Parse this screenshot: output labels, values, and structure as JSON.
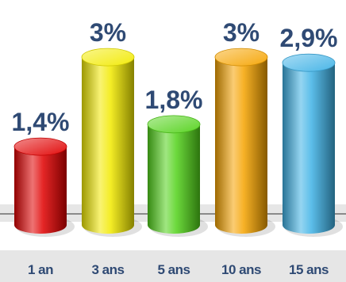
{
  "chart_data": {
    "type": "bar",
    "style": "3d-cylinder",
    "categories": [
      "1 an",
      "3 ans",
      "5 ans",
      "10 ans",
      "15 ans"
    ],
    "values": [
      1.4,
      3.0,
      1.8,
      3.0,
      2.9
    ],
    "value_labels": [
      "1,4%",
      "3%",
      "1,8%",
      "3%",
      "2,9%"
    ],
    "unit": "%",
    "ylim": [
      0,
      3.2
    ],
    "grid": false,
    "legend": "none",
    "bar_colors": [
      "#e00000",
      "#f2ea00",
      "#52d21a",
      "#f5a300",
      "#3fb2e6"
    ],
    "label_color": "#2f4a74",
    "category_band_color": "#e6e6e6"
  }
}
